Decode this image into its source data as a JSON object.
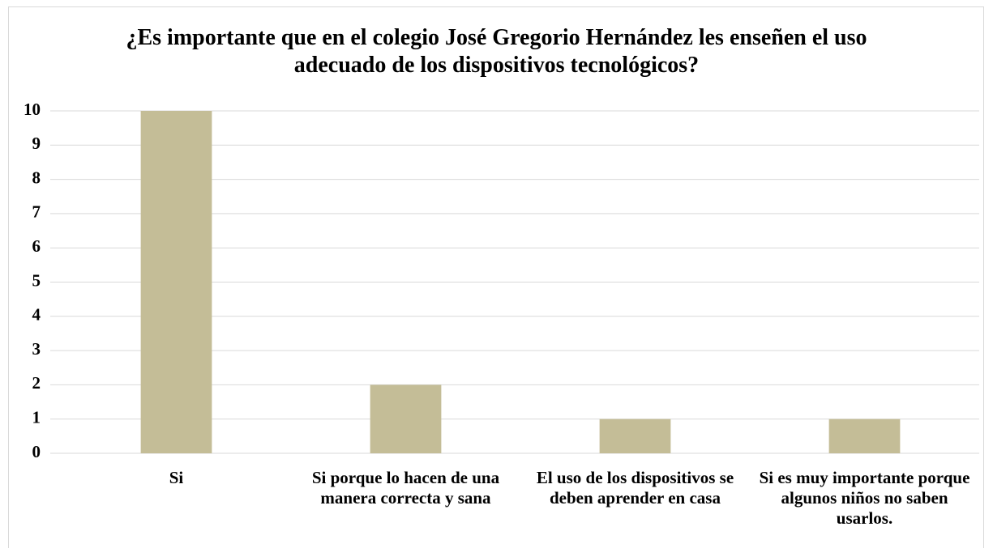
{
  "chart_data": {
    "type": "bar",
    "title": "¿Es importante que en el colegio José Gregorio Hernández les enseñen el uso adecuado de los dispositivos tecnológicos?",
    "categories": [
      "Si",
      "Si porque lo hacen de una manera correcta y sana",
      "El uso de los dispositivos se deben aprender en casa",
      "Si es muy importante porque algunos niños no saben usarlos."
    ],
    "values": [
      10,
      2,
      1,
      1
    ],
    "color": "#c4bd97",
    "ylim": [
      0,
      10
    ],
    "yticks": [
      0,
      1,
      2,
      3,
      4,
      5,
      6,
      7,
      8,
      9,
      10
    ],
    "grid": true
  }
}
